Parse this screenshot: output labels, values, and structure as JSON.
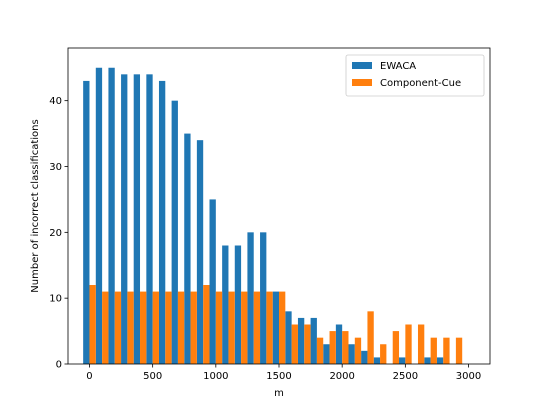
{
  "chart_data": {
    "type": "bar",
    "xlabel": "m",
    "ylabel": "Number of incorrect classifications",
    "xlim": [
      -170,
      3170
    ],
    "ylim": [
      0,
      48
    ],
    "xticks": [
      0,
      500,
      1000,
      1500,
      2000,
      2500,
      3000
    ],
    "yticks": [
      0,
      10,
      20,
      30,
      40
    ],
    "grid": false,
    "legend_position": "top-right",
    "bar_width_data": 50,
    "x": [
      0,
      100,
      200,
      300,
      400,
      500,
      600,
      700,
      800,
      900,
      1000,
      1100,
      1200,
      1300,
      1400,
      1500,
      1600,
      1700,
      1800,
      1900,
      2000,
      2100,
      2200,
      2300,
      2400,
      2500,
      2600,
      2700,
      2800,
      2900
    ],
    "series": [
      {
        "name": "EWACA",
        "color": "#1f77b4",
        "values": [
          43,
          45,
          45,
          44,
          44,
          44,
          43,
          40,
          35,
          34,
          25,
          18,
          18,
          20,
          20,
          11,
          8,
          7,
          7,
          3,
          6,
          3,
          2,
          1,
          0,
          1,
          0,
          1,
          1,
          0
        ]
      },
      {
        "name": "Component-Cue",
        "color": "#ff7f0e",
        "values": [
          12,
          11,
          11,
          11,
          11,
          11,
          11,
          11,
          11,
          12,
          11,
          11,
          11,
          11,
          11,
          11,
          6,
          6,
          4,
          5,
          5,
          4,
          8,
          3,
          5,
          6,
          6,
          4,
          4,
          4
        ]
      }
    ]
  }
}
